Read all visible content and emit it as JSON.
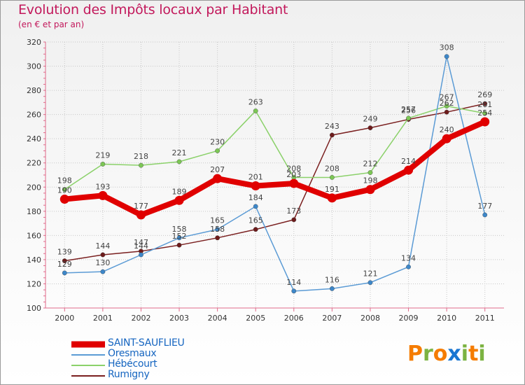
{
  "title": "Evolution des Impôts locaux par Habitant",
  "subtitle": "(en € et par an)",
  "logo": {
    "letters": [
      "P",
      "r",
      "o",
      "x",
      "i",
      "t",
      "i"
    ],
    "colors": [
      "#f57c00",
      "#7cb342",
      "#f57c00",
      "#1976d2",
      "#7cb342",
      "#f57c00",
      "#7cb342"
    ]
  },
  "chart_data": {
    "type": "line",
    "x": [
      "2000",
      "2001",
      "2002",
      "2003",
      "2004",
      "2005",
      "2006",
      "2007",
      "2008",
      "2009",
      "2010",
      "2011"
    ],
    "ylim": [
      100,
      320
    ],
    "yticks": [
      "100",
      "120",
      "140",
      "160",
      "180",
      "200",
      "220",
      "240",
      "260",
      "280",
      "300",
      "320"
    ],
    "grid": true,
    "series": [
      {
        "name": "Rumigny",
        "color": "#7a1f1f",
        "marker": "#6d1b1b",
        "bold": false,
        "values": [
          139,
          144,
          147,
          152,
          158,
          165,
          173,
          243,
          249,
          256,
          262,
          269
        ],
        "labels": [
          "139",
          "144",
          "147",
          "152",
          "158",
          "165",
          "173",
          "243",
          "249",
          "256",
          "262",
          "269"
        ]
      },
      {
        "name": "Hébécourt",
        "color": "#8bd16a",
        "marker": "#7cc755",
        "bold": false,
        "values": [
          198,
          219,
          218,
          221,
          230,
          263,
          208,
          208,
          212,
          257,
          267,
          261
        ],
        "labels": [
          "198",
          "219",
          "218",
          "221",
          "230",
          "263",
          "208",
          "208",
          "212",
          "257",
          "267",
          "261"
        ]
      },
      {
        "name": "Oresmaux",
        "color": "#5b9bd5",
        "marker": "#3d87c9",
        "bold": false,
        "values": [
          129,
          130,
          144,
          158,
          165,
          184,
          114,
          116,
          121,
          134,
          308,
          177
        ],
        "labels": [
          "129",
          "130",
          "144",
          "158",
          "165",
          "184",
          "114",
          "116",
          "121",
          "134",
          "308",
          "177"
        ]
      },
      {
        "name": "SAINT-SAUFLIEU",
        "color": "#e00000",
        "marker": "#e00000",
        "bold": true,
        "values": [
          190,
          193,
          177,
          189,
          207,
          201,
          203,
          191,
          198,
          214,
          240,
          254
        ],
        "labels": [
          "190",
          "193",
          "177",
          "189",
          "207",
          "201",
          "203",
          "191",
          "198",
          "214",
          "240",
          "254"
        ]
      }
    ],
    "legend": {
      "position": "bottom-left",
      "entries": [
        {
          "name": "SAINT-SAUFLIEU",
          "color": "#e00000",
          "bold": true
        },
        {
          "name": "Oresmaux",
          "color": "#5b9bd5",
          "bold": false
        },
        {
          "name": "Hébécourt",
          "color": "#8bd16a",
          "bold": false
        },
        {
          "name": "Rumigny",
          "color": "#7a1f1f",
          "bold": false
        }
      ]
    }
  }
}
